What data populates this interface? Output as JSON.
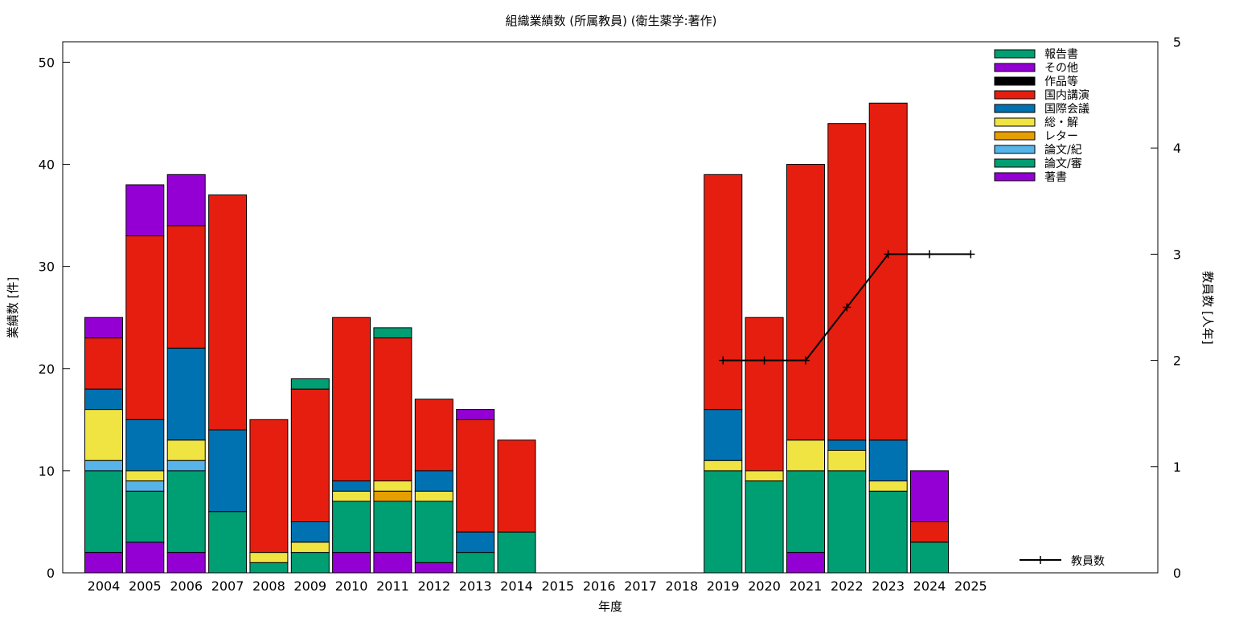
{
  "chart_data": {
    "type": "bar",
    "stacked": true,
    "title": "組織業績数 (所属教員) (衛生薬学:著作)",
    "xlabel": "年度",
    "ylabel": "業績数 [件]",
    "y2label": "教員数 [人年]",
    "ylim": [
      0,
      52
    ],
    "y2lim": [
      0,
      5
    ],
    "yticks": [
      "0",
      "10",
      "20",
      "30",
      "40",
      "50"
    ],
    "y2ticks": [
      "0",
      "1",
      "2",
      "3",
      "4",
      "5"
    ],
    "grid": false,
    "legend_position": "top-right",
    "categories": [
      "2004",
      "2005",
      "2006",
      "2007",
      "2008",
      "2009",
      "2010",
      "2011",
      "2012",
      "2013",
      "2014",
      "2015",
      "2016",
      "2017",
      "2018",
      "2019",
      "2020",
      "2021",
      "2022",
      "2023",
      "2024",
      "2025"
    ],
    "series": [
      {
        "name": "著書",
        "color": "#9400d3",
        "values": [
          2,
          3,
          2,
          0,
          0,
          0,
          2,
          2,
          1,
          0,
          0,
          0,
          0,
          0,
          0,
          0,
          0,
          2,
          0,
          0,
          0,
          0
        ]
      },
      {
        "name": "論文/審",
        "color": "#009e73",
        "values": [
          8,
          5,
          8,
          6,
          1,
          2,
          5,
          5,
          6,
          2,
          4,
          0,
          0,
          0,
          0,
          10,
          9,
          8,
          10,
          8,
          3,
          0
        ]
      },
      {
        "name": "論文/紀",
        "color": "#56b4e9",
        "values": [
          1,
          1,
          1,
          0,
          0,
          0,
          0,
          0,
          0,
          0,
          0,
          0,
          0,
          0,
          0,
          0,
          0,
          0,
          0,
          0,
          0,
          0
        ]
      },
      {
        "name": "レター",
        "color": "#e69f00",
        "values": [
          0,
          0,
          0,
          0,
          0,
          0,
          0,
          1,
          0,
          0,
          0,
          0,
          0,
          0,
          0,
          0,
          0,
          0,
          0,
          0,
          0,
          0
        ]
      },
      {
        "name": "総・解",
        "color": "#f0e442",
        "values": [
          5,
          1,
          2,
          0,
          1,
          1,
          1,
          1,
          1,
          0,
          0,
          0,
          0,
          0,
          0,
          1,
          1,
          3,
          2,
          1,
          0,
          0
        ]
      },
      {
        "name": "国際会議",
        "color": "#0072b2",
        "values": [
          2,
          5,
          9,
          8,
          0,
          2,
          1,
          0,
          2,
          2,
          0,
          0,
          0,
          0,
          0,
          5,
          0,
          0,
          1,
          4,
          0,
          0
        ]
      },
      {
        "name": "国内講演",
        "color": "#e51e10",
        "values": [
          5,
          18,
          12,
          23,
          13,
          13,
          16,
          14,
          7,
          11,
          9,
          0,
          0,
          0,
          0,
          23,
          15,
          27,
          31,
          33,
          2,
          0
        ]
      },
      {
        "name": "作品等",
        "color": "#000000",
        "values": [
          0,
          0,
          0,
          0,
          0,
          0,
          0,
          0,
          0,
          0,
          0,
          0,
          0,
          0,
          0,
          0,
          0,
          0,
          0,
          0,
          0,
          0
        ]
      },
      {
        "name": "その他",
        "color": "#9400d3",
        "values": [
          2,
          5,
          5,
          0,
          0,
          0,
          0,
          0,
          0,
          1,
          0,
          0,
          0,
          0,
          0,
          0,
          0,
          0,
          0,
          0,
          5,
          0
        ]
      },
      {
        "name": "報告書",
        "color": "#009e73",
        "values": [
          0,
          0,
          0,
          0,
          0,
          1,
          0,
          1,
          0,
          0,
          0,
          0,
          0,
          0,
          0,
          0,
          0,
          0,
          0,
          0,
          0,
          0
        ]
      }
    ],
    "line_series": {
      "name": "教員数",
      "axis": "y2",
      "color": "#000000",
      "points": [
        {
          "x": "2019",
          "y": 2
        },
        {
          "x": "2020",
          "y": 2
        },
        {
          "x": "2021",
          "y": 2
        },
        {
          "x": "2022",
          "y": 2.5
        },
        {
          "x": "2023",
          "y": 3
        },
        {
          "x": "2024",
          "y": 3
        },
        {
          "x": "2025",
          "y": 3
        }
      ]
    }
  }
}
